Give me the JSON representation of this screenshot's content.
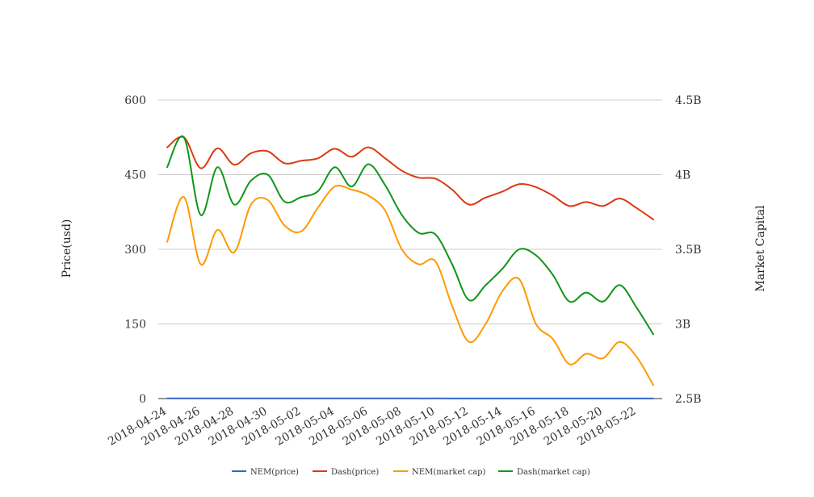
{
  "chart_data": {
    "type": "line",
    "x": [
      "2018-04-24",
      "2018-04-25",
      "2018-04-26",
      "2018-04-27",
      "2018-04-28",
      "2018-04-29",
      "2018-04-30",
      "2018-05-01",
      "2018-05-02",
      "2018-05-03",
      "2018-05-04",
      "2018-05-05",
      "2018-05-06",
      "2018-05-07",
      "2018-05-08",
      "2018-05-09",
      "2018-05-10",
      "2018-05-11",
      "2018-05-12",
      "2018-05-13",
      "2018-05-14",
      "2018-05-15",
      "2018-05-16",
      "2018-05-17",
      "2018-05-18",
      "2018-05-19",
      "2018-05-20",
      "2018-05-21",
      "2018-05-22",
      "2018-05-23"
    ],
    "x_tick_labels": [
      "2018-04-24",
      "2018-04-26",
      "2018-04-28",
      "2018-04-30",
      "2018-05-02",
      "2018-05-04",
      "2018-05-06",
      "2018-05-08",
      "2018-05-10",
      "2018-05-12",
      "2018-05-14",
      "2018-05-16",
      "2018-05-18",
      "2018-05-20",
      "2018-05-22"
    ],
    "y_left": {
      "label": "Price(usd)",
      "range": [
        0,
        600
      ],
      "ticks": [
        "0",
        "150",
        "300",
        "450",
        "600"
      ],
      "tick_values": [
        0,
        150,
        300,
        450,
        600
      ]
    },
    "y_right": {
      "label": "Market Capital",
      "range": [
        2.5,
        4.5
      ],
      "ticks": [
        "2.5B",
        "3B",
        "3.5B",
        "4B",
        "4.5B"
      ],
      "tick_values": [
        2.5,
        3,
        3.5,
        4,
        4.5
      ]
    },
    "grid": true,
    "legend_position": "bottom",
    "series": [
      {
        "name": "NEM(price)",
        "axis": "left",
        "color": "#3366cc",
        "values": [
          0.34,
          0.37,
          0.32,
          0.34,
          0.32,
          0.37,
          0.38,
          0.35,
          0.33,
          0.37,
          0.4,
          0.4,
          0.39,
          0.38,
          0.33,
          0.3,
          0.31,
          0.23,
          0.2,
          0.22,
          0.26,
          0.28,
          0.23,
          0.21,
          0.19,
          0.2,
          0.19,
          0.22,
          0.2,
          0.17
        ]
      },
      {
        "name": "Dash(price)",
        "axis": "left",
        "color": "#dc3912",
        "values": [
          505,
          525,
          463,
          503,
          470,
          493,
          497,
          473,
          478,
          483,
          502,
          486,
          505,
          483,
          458,
          444,
          442,
          420,
          390,
          404,
          416,
          431,
          425,
          408,
          387,
          395,
          387,
          402,
          383,
          360
        ]
      },
      {
        "name": "NEM(market cap)",
        "axis": "right",
        "color": "#ff9900",
        "values": [
          3.55,
          3.85,
          3.4,
          3.63,
          3.48,
          3.8,
          3.83,
          3.66,
          3.62,
          3.78,
          3.92,
          3.9,
          3.86,
          3.76,
          3.5,
          3.4,
          3.42,
          3.12,
          2.88,
          3.0,
          3.22,
          3.3,
          3.0,
          2.9,
          2.73,
          2.8,
          2.77,
          2.88,
          2.78,
          2.59
        ]
      },
      {
        "name": "Dash(market cap)",
        "axis": "right",
        "color": "#109618",
        "values": [
          4.05,
          4.25,
          3.73,
          4.05,
          3.8,
          3.96,
          4.0,
          3.82,
          3.85,
          3.89,
          4.05,
          3.92,
          4.07,
          3.93,
          3.73,
          3.61,
          3.6,
          3.4,
          3.16,
          3.26,
          3.37,
          3.5,
          3.46,
          3.33,
          3.15,
          3.21,
          3.15,
          3.26,
          3.11,
          2.93
        ]
      }
    ]
  }
}
